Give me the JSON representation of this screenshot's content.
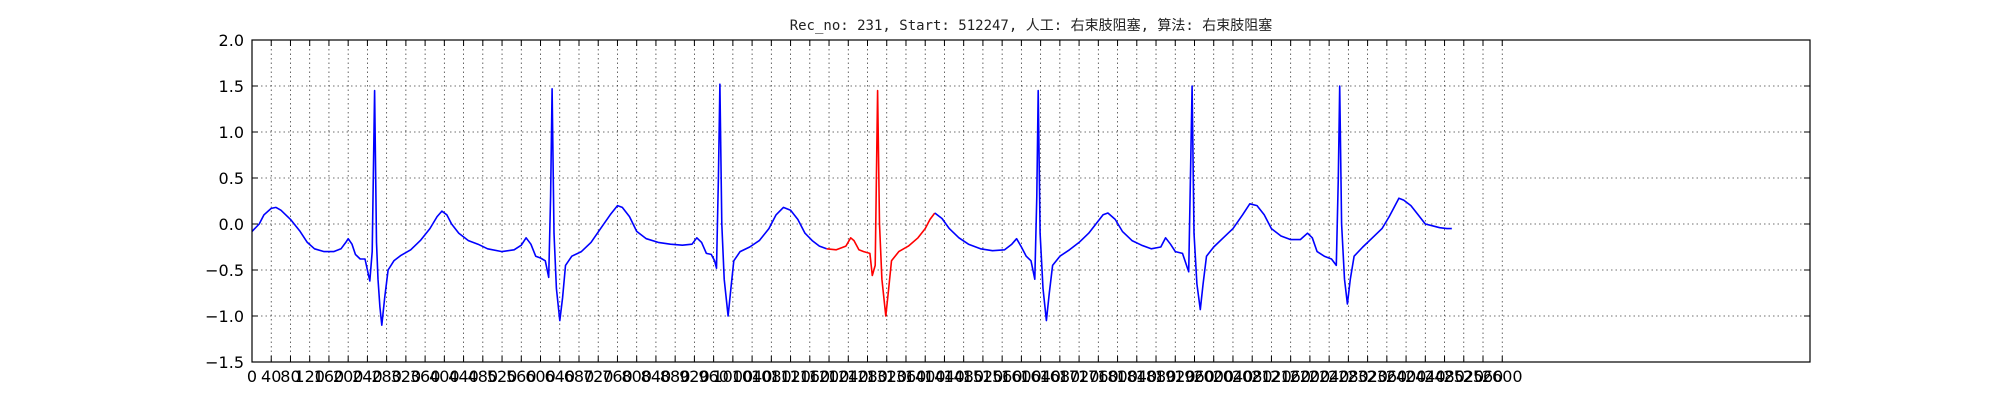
{
  "chart_data": {
    "type": "line",
    "title": "Rec_no: 231, Start: 512247, 人工: 右束肢阻塞, 算法: 右束肢阻塞",
    "xlabel": "",
    "ylabel": "",
    "xlim": [
      0,
      3240
    ],
    "ylim": [
      -1.5,
      2.0
    ],
    "grid": true,
    "legend": "none",
    "y_ticks": [
      -1.5,
      -1.0,
      -0.5,
      0.0,
      0.5,
      1.0,
      1.5,
      2.0
    ],
    "y_tick_labels": [
      "−1.5",
      "−1.0",
      "−0.5",
      "0.0",
      "0.5",
      "1.0",
      "1.5",
      "2.0"
    ],
    "x_ticks": [
      0,
      40,
      80,
      120,
      160,
      200,
      240,
      280,
      320,
      360,
      400,
      440,
      480,
      520,
      560,
      600,
      640,
      680,
      720,
      760,
      800,
      840,
      880,
      920,
      960,
      1000,
      1040,
      1080,
      1120,
      1160,
      1200,
      1240,
      1280,
      1320,
      1360,
      1400,
      1440,
      1480,
      1520,
      1560,
      1600,
      1640,
      1680,
      1720,
      1760,
      1800,
      1840,
      1880,
      1920,
      1960,
      2000,
      2040,
      2080,
      2120,
      2160,
      2200,
      2240,
      2280,
      2320,
      2360,
      2400,
      2440,
      2480,
      2520,
      2560,
      2600
    ],
    "x_tick_labels": [
      "0",
      "40",
      "80",
      "120",
      "160",
      "200",
      "240",
      "280",
      "320",
      "360",
      "400",
      "440",
      "480",
      "520",
      "560",
      "600",
      "640",
      "680",
      "720",
      "760",
      "800",
      "840",
      "880",
      "920",
      "960",
      "1000",
      "1040",
      "1080",
      "1120",
      "1160",
      "1200",
      "1240",
      "1280",
      "1320",
      "1360",
      "1400",
      "1440",
      "1480",
      "1520",
      "1560",
      "1600",
      "1640",
      "1680",
      "1720",
      "1760",
      "1800",
      "1840",
      "1880",
      "1920",
      "1960",
      "2000",
      "2040",
      "2080",
      "2120",
      "2160",
      "2200",
      "2240",
      "2280",
      "2320",
      "2360",
      "2400",
      "2440",
      "2480",
      "2520",
      "2560",
      "2600"
    ],
    "series": [
      {
        "color": "#0000ff",
        "points": [
          [
            0,
            -0.08
          ],
          [
            15,
            0.0
          ],
          [
            25,
            0.1
          ],
          [
            40,
            0.17
          ],
          [
            50,
            0.18
          ],
          [
            60,
            0.15
          ],
          [
            80,
            0.05
          ],
          [
            100,
            -0.08
          ],
          [
            115,
            -0.2
          ],
          [
            130,
            -0.27
          ],
          [
            150,
            -0.3
          ],
          [
            170,
            -0.3
          ],
          [
            185,
            -0.27
          ],
          [
            195,
            -0.2
          ],
          [
            200,
            -0.16
          ],
          [
            208,
            -0.22
          ],
          [
            215,
            -0.33
          ],
          [
            225,
            -0.38
          ],
          [
            235,
            -0.38
          ],
          [
            240,
            -0.5
          ],
          [
            245,
            -0.62
          ],
          [
            250,
            -0.3
          ],
          [
            255,
            1.45
          ],
          [
            259,
            -0.2
          ],
          [
            262,
            -0.6
          ],
          [
            266,
            -0.9
          ],
          [
            270,
            -1.1
          ],
          [
            276,
            -0.8
          ],
          [
            283,
            -0.5
          ],
          [
            295,
            -0.4
          ],
          [
            310,
            -0.34
          ],
          [
            330,
            -0.28
          ],
          [
            350,
            -0.18
          ],
          [
            370,
            -0.05
          ],
          [
            385,
            0.08
          ],
          [
            395,
            0.14
          ],
          [
            405,
            0.1
          ],
          [
            415,
            0.0
          ],
          [
            430,
            -0.1
          ],
          [
            450,
            -0.18
          ],
          [
            470,
            -0.22
          ],
          [
            490,
            -0.27
          ],
          [
            520,
            -0.3
          ],
          [
            545,
            -0.28
          ],
          [
            560,
            -0.23
          ],
          [
            570,
            -0.15
          ],
          [
            580,
            -0.22
          ],
          [
            590,
            -0.35
          ],
          [
            600,
            -0.37
          ],
          [
            610,
            -0.4
          ],
          [
            617,
            -0.58
          ],
          [
            621,
            0.3
          ],
          [
            624,
            1.47
          ],
          [
            628,
            -0.1
          ],
          [
            633,
            -0.7
          ],
          [
            640,
            -1.05
          ],
          [
            646,
            -0.8
          ],
          [
            652,
            -0.45
          ],
          [
            665,
            -0.35
          ],
          [
            685,
            -0.3
          ],
          [
            705,
            -0.2
          ],
          [
            725,
            -0.05
          ],
          [
            745,
            0.1
          ],
          [
            760,
            0.2
          ],
          [
            770,
            0.18
          ],
          [
            785,
            0.08
          ],
          [
            800,
            -0.08
          ],
          [
            820,
            -0.16
          ],
          [
            845,
            -0.2
          ],
          [
            870,
            -0.22
          ],
          [
            895,
            -0.23
          ],
          [
            915,
            -0.22
          ],
          [
            925,
            -0.15
          ],
          [
            935,
            -0.2
          ],
          [
            945,
            -0.32
          ],
          [
            955,
            -0.33
          ],
          [
            962,
            -0.4
          ],
          [
            966,
            -0.48
          ],
          [
            970,
            0.5
          ],
          [
            973,
            1.52
          ],
          [
            977,
            0.0
          ],
          [
            982,
            -0.6
          ],
          [
            990,
            -1.0
          ],
          [
            996,
            -0.7
          ],
          [
            1002,
            -0.4
          ],
          [
            1015,
            -0.3
          ],
          [
            1035,
            -0.25
          ],
          [
            1055,
            -0.18
          ],
          [
            1075,
            -0.05
          ],
          [
            1090,
            0.1
          ],
          [
            1105,
            0.18
          ],
          [
            1120,
            0.15
          ],
          [
            1135,
            0.05
          ],
          [
            1150,
            -0.1
          ],
          [
            1165,
            -0.18
          ],
          [
            1180,
            -0.24
          ],
          [
            1195,
            -0.27
          ]
        ]
      },
      {
        "color": "#ff0000",
        "points": [
          [
            1195,
            -0.27
          ],
          [
            1215,
            -0.28
          ],
          [
            1235,
            -0.24
          ],
          [
            1245,
            -0.15
          ],
          [
            1252,
            -0.18
          ],
          [
            1262,
            -0.28
          ],
          [
            1272,
            -0.3
          ],
          [
            1285,
            -0.32
          ],
          [
            1290,
            -0.56
          ],
          [
            1296,
            -0.45
          ],
          [
            1301,
            1.45
          ],
          [
            1305,
            0.0
          ],
          [
            1310,
            -0.6
          ],
          [
            1318,
            -1.0
          ],
          [
            1324,
            -0.7
          ],
          [
            1330,
            -0.4
          ],
          [
            1345,
            -0.3
          ],
          [
            1365,
            -0.24
          ],
          [
            1385,
            -0.15
          ],
          [
            1400,
            -0.05
          ],
          [
            1410,
            0.05
          ],
          [
            1420,
            0.12
          ]
        ]
      },
      {
        "color": "#0000ff",
        "points": [
          [
            1420,
            0.12
          ],
          [
            1435,
            0.06
          ],
          [
            1450,
            -0.05
          ],
          [
            1470,
            -0.15
          ],
          [
            1490,
            -0.22
          ],
          [
            1515,
            -0.27
          ],
          [
            1540,
            -0.29
          ],
          [
            1565,
            -0.28
          ],
          [
            1580,
            -0.22
          ],
          [
            1590,
            -0.16
          ],
          [
            1600,
            -0.25
          ],
          [
            1610,
            -0.35
          ],
          [
            1620,
            -0.4
          ],
          [
            1628,
            -0.6
          ],
          [
            1632,
            0.3
          ],
          [
            1635,
            1.45
          ],
          [
            1639,
            -0.1
          ],
          [
            1645,
            -0.7
          ],
          [
            1652,
            -1.05
          ],
          [
            1658,
            -0.75
          ],
          [
            1665,
            -0.45
          ],
          [
            1680,
            -0.35
          ],
          [
            1700,
            -0.28
          ],
          [
            1720,
            -0.2
          ],
          [
            1740,
            -0.1
          ],
          [
            1755,
            0.0
          ],
          [
            1770,
            0.1
          ],
          [
            1780,
            0.12
          ],
          [
            1795,
            0.05
          ],
          [
            1810,
            -0.08
          ],
          [
            1830,
            -0.18
          ],
          [
            1850,
            -0.23
          ],
          [
            1870,
            -0.27
          ],
          [
            1890,
            -0.25
          ],
          [
            1900,
            -0.15
          ],
          [
            1910,
            -0.22
          ],
          [
            1920,
            -0.3
          ],
          [
            1935,
            -0.32
          ],
          [
            1948,
            -0.52
          ],
          [
            1952,
            0.6
          ],
          [
            1955,
            1.5
          ],
          [
            1959,
            -0.1
          ],
          [
            1965,
            -0.65
          ],
          [
            1972,
            -0.93
          ],
          [
            1978,
            -0.65
          ],
          [
            1985,
            -0.35
          ],
          [
            2000,
            -0.25
          ],
          [
            2020,
            -0.15
          ],
          [
            2040,
            -0.05
          ],
          [
            2060,
            0.1
          ],
          [
            2075,
            0.22
          ],
          [
            2090,
            0.2
          ],
          [
            2105,
            0.1
          ],
          [
            2120,
            -0.05
          ],
          [
            2140,
            -0.13
          ],
          [
            2160,
            -0.17
          ],
          [
            2180,
            -0.17
          ],
          [
            2195,
            -0.1
          ],
          [
            2205,
            -0.15
          ],
          [
            2215,
            -0.3
          ],
          [
            2230,
            -0.35
          ],
          [
            2245,
            -0.38
          ],
          [
            2255,
            -0.45
          ],
          [
            2259,
            0.5
          ],
          [
            2262,
            1.5
          ],
          [
            2266,
            0.0
          ],
          [
            2272,
            -0.6
          ],
          [
            2278,
            -0.87
          ],
          [
            2284,
            -0.6
          ],
          [
            2292,
            -0.35
          ],
          [
            2310,
            -0.25
          ],
          [
            2330,
            -0.15
          ],
          [
            2350,
            -0.05
          ],
          [
            2365,
            0.08
          ],
          [
            2375,
            0.18
          ],
          [
            2385,
            0.28
          ],
          [
            2395,
            0.26
          ],
          [
            2410,
            0.2
          ],
          [
            2425,
            0.1
          ],
          [
            2440,
            0.0
          ],
          [
            2455,
            -0.02
          ],
          [
            2470,
            -0.04
          ],
          [
            2485,
            -0.05
          ],
          [
            2495,
            -0.05
          ]
        ]
      }
    ]
  }
}
